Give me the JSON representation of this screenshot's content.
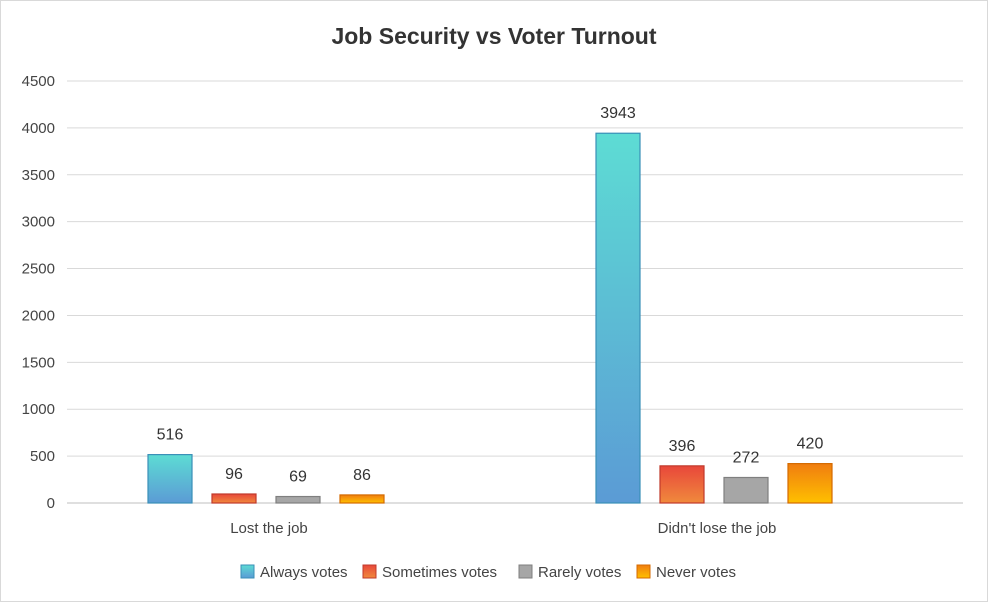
{
  "chart_data": {
    "type": "bar",
    "title": "Job Security vs Voter Turnout",
    "xlabel": "",
    "ylabel": "",
    "categories": [
      "Lost the job",
      "Didn't lose the job"
    ],
    "series": [
      {
        "name": "Always votes",
        "values": [
          516,
          3943
        ],
        "color_top": "#5ddcd4",
        "color_bottom": "#5b9bd5"
      },
      {
        "name": "Sometimes votes",
        "values": [
          96,
          396
        ],
        "color_top": "#e8473b",
        "color_bottom": "#f08a3c"
      },
      {
        "name": "Rarely votes",
        "values": [
          69,
          272
        ],
        "color_top": "#a6a6a6",
        "color_bottom": "#a6a6a6"
      },
      {
        "name": "Never votes",
        "values": [
          86,
          420
        ],
        "color_top": "#f07d10",
        "color_bottom": "#ffc000"
      }
    ],
    "ylim": [
      0,
      4500
    ],
    "yticks": [
      0,
      500,
      1000,
      1500,
      2000,
      2500,
      3000,
      3500,
      4000,
      4500
    ],
    "grid": true,
    "legend": "bottom",
    "data_labels": true
  }
}
